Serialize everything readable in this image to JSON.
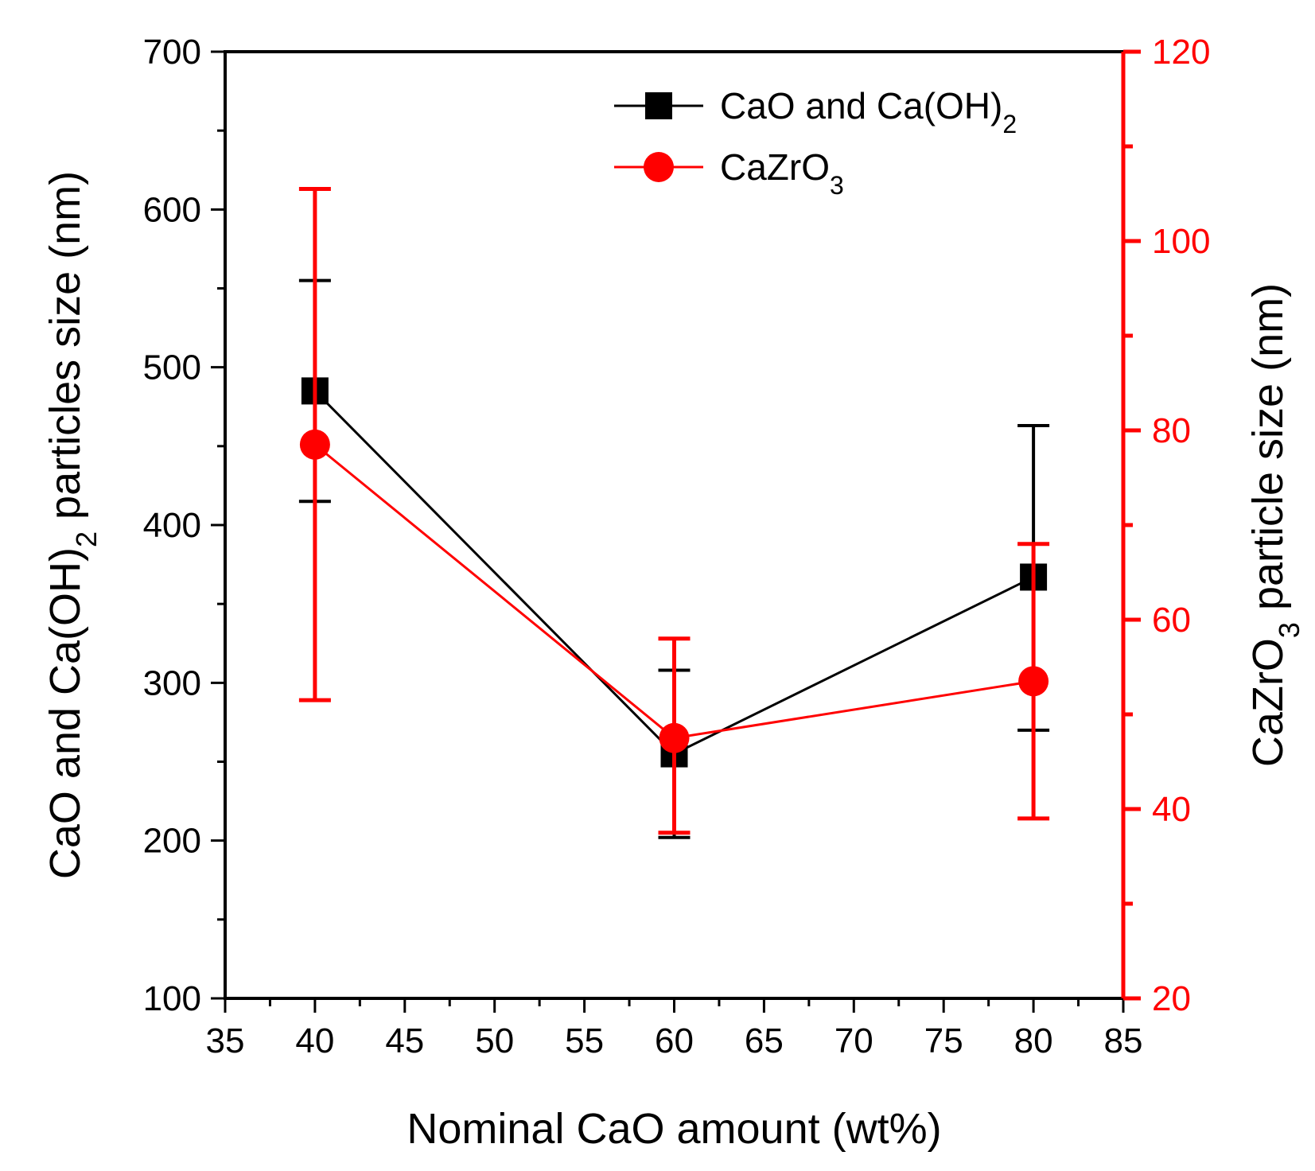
{
  "chart_data": {
    "type": "line",
    "title": "",
    "xlabel": "Nominal CaO amount (wt%)",
    "xlim": [
      35,
      85
    ],
    "xticks": [
      35,
      40,
      45,
      50,
      55,
      60,
      65,
      70,
      75,
      80,
      85
    ],
    "left_axis": {
      "label_parts": {
        "pre": "CaO and Ca(OH)",
        "sub": "2",
        "post": " particles size (nm)"
      },
      "ylim": [
        100,
        700
      ],
      "ticks": [
        100,
        200,
        300,
        400,
        500,
        600,
        700
      ],
      "color": "#000000"
    },
    "right_axis": {
      "label_parts": {
        "pre": "CaZrO",
        "sub": "3",
        "post": " particle size (nm)"
      },
      "ylim": [
        20,
        120
      ],
      "ticks": [
        20,
        40,
        60,
        80,
        100,
        120
      ],
      "color": "#ff0000"
    },
    "series": [
      {
        "name_parts": {
          "pre": "CaO and Ca(OH)",
          "sub": "2"
        },
        "axis": "left",
        "marker": "square",
        "color": "#000000",
        "x": [
          40,
          60,
          80
        ],
        "y": [
          485,
          255,
          367
        ],
        "err_low": [
          415,
          202,
          270
        ],
        "err_high": [
          555,
          308,
          463
        ]
      },
      {
        "name_parts": {
          "pre": "CaZrO",
          "sub": "3"
        },
        "axis": "right",
        "marker": "circle",
        "color": "#ff0000",
        "x": [
          40,
          60,
          80
        ],
        "y": [
          78.5,
          47.5,
          53.5
        ],
        "err_low": [
          51.5,
          37.5,
          39.0
        ],
        "err_high": [
          105.5,
          58.0,
          68.0
        ]
      }
    ],
    "legend_position": "top-right"
  }
}
